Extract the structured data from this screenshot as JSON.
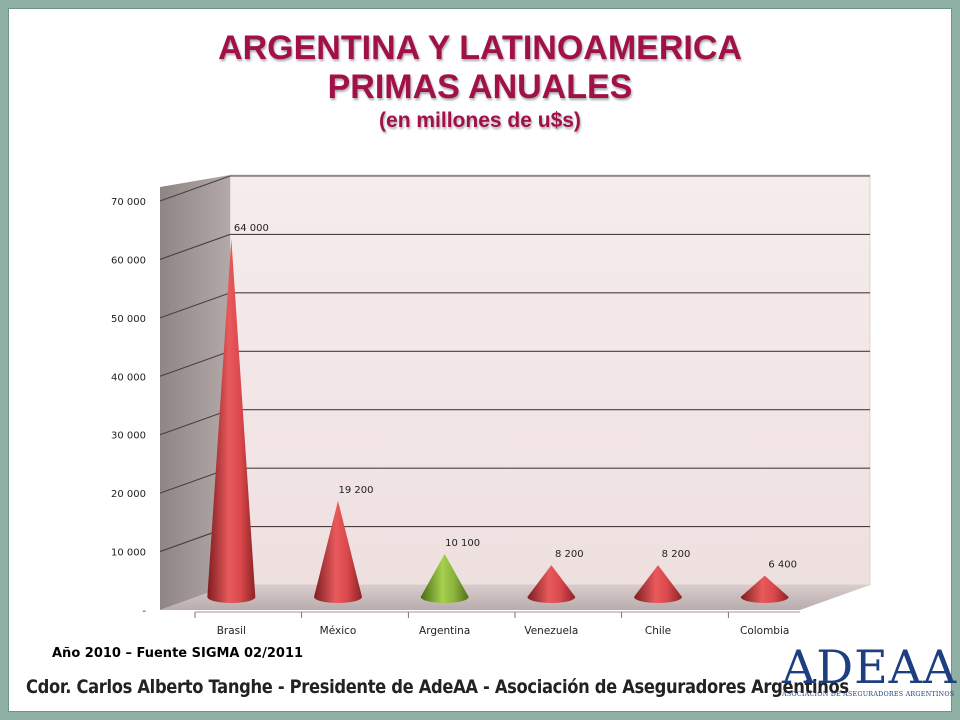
{
  "title": {
    "line1": "ARGENTINA Y LATINOAMERICA",
    "line2": "PRIMAS ANUALES",
    "line3": "(en millones de u$s)"
  },
  "footnote": "Año 2010 – Fuente SIGMA 02/2011",
  "footer": "Cdor. Carlos Alberto Tanghe - Presidente  de AdeAA - Asociación de Aseguradores Argentinos",
  "logo": {
    "mark": "ADEAA",
    "subtitle": "ASOCIACIÓN DE ASEGURADORES ARGENTINOS"
  },
  "colors": {
    "title": "#a11047",
    "cone_default": "#d9474a",
    "cone_highlight": "#8ab33a",
    "wall": "#f2e4e4",
    "side_wall": "#9e9393",
    "floor": "#cbbfbf"
  },
  "chart_data": {
    "type": "bar",
    "shape": "cone",
    "categories": [
      "Brasil",
      "México",
      "Argentina",
      "Venezuela",
      "Chile",
      "Colombia"
    ],
    "values": [
      64000,
      19200,
      10100,
      8200,
      8200,
      6400
    ],
    "data_labels": [
      "64 000",
      "19 200",
      "10 100",
      "8 200",
      "8 200",
      "6 400"
    ],
    "highlight_category": "Argentina",
    "ylim": [
      0,
      70000
    ],
    "ytick_values": [
      0,
      10000,
      20000,
      30000,
      40000,
      50000,
      60000,
      70000
    ],
    "ytick_labels": [
      "-",
      "10 000",
      "20 000",
      "30 000",
      "40 000",
      "50 000",
      "60 000",
      "70 000"
    ],
    "grid": true
  }
}
